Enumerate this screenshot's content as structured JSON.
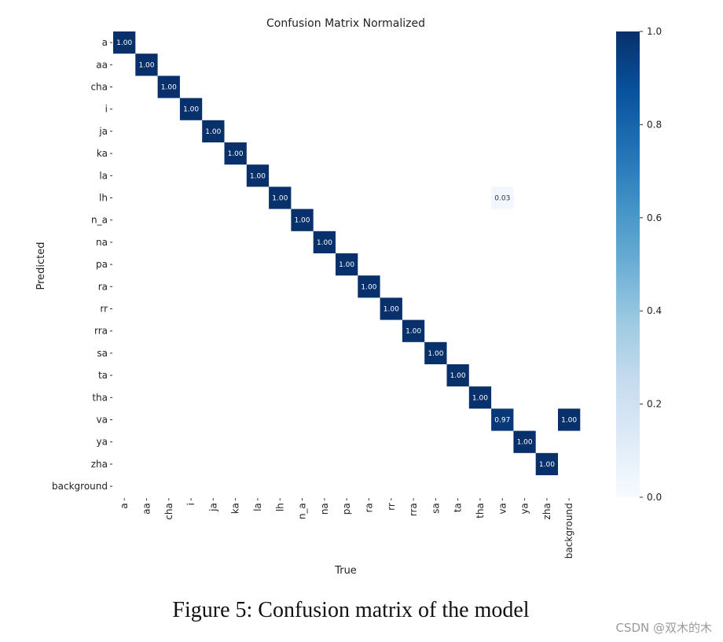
{
  "chart_data": {
    "type": "heatmap",
    "title": "Confusion Matrix Normalized",
    "xlabel": "True",
    "ylabel": "Predicted",
    "x_categories": [
      "a",
      "aa",
      "cha",
      "i",
      "ja",
      "ka",
      "la",
      "lh",
      "n_a",
      "na",
      "pa",
      "ra",
      "rr",
      "rra",
      "sa",
      "ta",
      "tha",
      "va",
      "ya",
      "zha",
      "background"
    ],
    "y_categories": [
      "a",
      "aa",
      "cha",
      "i",
      "ja",
      "ka",
      "la",
      "lh",
      "n_a",
      "na",
      "pa",
      "ra",
      "rr",
      "rra",
      "sa",
      "ta",
      "tha",
      "va",
      "ya",
      "zha",
      "background"
    ],
    "cells": [
      {
        "predicted": "a",
        "true": "a",
        "value": 1.0,
        "label": "1.00"
      },
      {
        "predicted": "aa",
        "true": "aa",
        "value": 1.0,
        "label": "1.00"
      },
      {
        "predicted": "cha",
        "true": "cha",
        "value": 1.0,
        "label": "1.00"
      },
      {
        "predicted": "i",
        "true": "i",
        "value": 1.0,
        "label": "1.00"
      },
      {
        "predicted": "ja",
        "true": "ja",
        "value": 1.0,
        "label": "1.00"
      },
      {
        "predicted": "ka",
        "true": "ka",
        "value": 1.0,
        "label": "1.00"
      },
      {
        "predicted": "la",
        "true": "la",
        "value": 1.0,
        "label": "1.00"
      },
      {
        "predicted": "lh",
        "true": "lh",
        "value": 1.0,
        "label": "1.00"
      },
      {
        "predicted": "lh",
        "true": "va",
        "value": 0.03,
        "label": "0.03"
      },
      {
        "predicted": "n_a",
        "true": "n_a",
        "value": 1.0,
        "label": "1.00"
      },
      {
        "predicted": "na",
        "true": "na",
        "value": 1.0,
        "label": "1.00"
      },
      {
        "predicted": "pa",
        "true": "pa",
        "value": 1.0,
        "label": "1.00"
      },
      {
        "predicted": "ra",
        "true": "ra",
        "value": 1.0,
        "label": "1.00"
      },
      {
        "predicted": "rr",
        "true": "rr",
        "value": 1.0,
        "label": "1.00"
      },
      {
        "predicted": "rra",
        "true": "rra",
        "value": 1.0,
        "label": "1.00"
      },
      {
        "predicted": "sa",
        "true": "sa",
        "value": 1.0,
        "label": "1.00"
      },
      {
        "predicted": "ta",
        "true": "ta",
        "value": 1.0,
        "label": "1.00"
      },
      {
        "predicted": "tha",
        "true": "tha",
        "value": 1.0,
        "label": "1.00"
      },
      {
        "predicted": "va",
        "true": "va",
        "value": 0.97,
        "label": "0.97"
      },
      {
        "predicted": "va",
        "true": "background",
        "value": 1.0,
        "label": "1.00"
      },
      {
        "predicted": "ya",
        "true": "ya",
        "value": 1.0,
        "label": "1.00"
      },
      {
        "predicted": "zha",
        "true": "zha",
        "value": 1.0,
        "label": "1.00"
      }
    ],
    "colorbar": {
      "range": [
        0.0,
        1.0
      ],
      "ticks": [
        1.0,
        0.8,
        0.6,
        0.4,
        0.2,
        0.0
      ],
      "tick_labels": [
        "1.0",
        "0.8",
        "0.6",
        "0.4",
        "0.2",
        "0.0"
      ],
      "colormap": "Blues",
      "colors": [
        "#f7fbff",
        "#deebf7",
        "#c6dbef",
        "#9ecae1",
        "#6baed6",
        "#4292c6",
        "#2171b5",
        "#08519c",
        "#08306b"
      ]
    },
    "grid": false
  },
  "caption": "Figure 5: Confusion matrix of the model",
  "watermark": "CSDN @双木的木"
}
